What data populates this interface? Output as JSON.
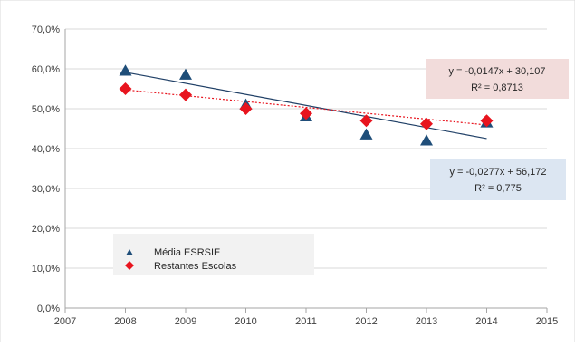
{
  "chart_data": {
    "type": "scatter",
    "title": "",
    "xlabel": "",
    "ylabel": "",
    "xlim": [
      2007,
      2015
    ],
    "ylim": [
      0,
      70
    ],
    "x_ticks": [
      2007,
      2008,
      2009,
      2010,
      2011,
      2012,
      2013,
      2014,
      2015
    ],
    "x_tick_labels": [
      "2007",
      "2008",
      "2009",
      "2010",
      "2011",
      "2012",
      "2013",
      "2014",
      "2015"
    ],
    "y_ticks": [
      0,
      10,
      20,
      30,
      40,
      50,
      60,
      70
    ],
    "y_tick_labels": [
      "0,0%",
      "10,0%",
      "20,0%",
      "30,0%",
      "40,0%",
      "50,0%",
      "60,0%",
      "70,0%"
    ],
    "grid": true,
    "legend_position": "bottom-left",
    "series": [
      {
        "name": "Média ESRSIE",
        "marker": "triangle",
        "color": "#1f4e79",
        "x": [
          2008,
          2009,
          2010,
          2011,
          2012,
          2013,
          2014
        ],
        "y": [
          59.5,
          58.5,
          51.0,
          48.0,
          43.5,
          42.0,
          46.5
        ],
        "trendline": {
          "slope": -2.77,
          "intercept": 5621.3,
          "x_range": [
            2008,
            2014
          ],
          "style": "solid",
          "color": "#1f3f66"
        },
        "equation": "y = -0,0277x + 56,172",
        "r_squared": "R² = 0,775"
      },
      {
        "name": "Restantes Escolas",
        "marker": "diamond",
        "color": "#e8141e",
        "x": [
          2008,
          2009,
          2010,
          2011,
          2012,
          2013,
          2014
        ],
        "y": [
          55.0,
          53.5,
          50.0,
          48.8,
          47.0,
          46.2,
          47.0
        ],
        "trendline": {
          "slope": -1.47,
          "intercept": 3006.5,
          "x_range": [
            2008,
            2014
          ],
          "style": "dotted",
          "color": "#e8141e"
        },
        "equation": "y = -0,0147x + 30,107",
        "r_squared": "R² = 0,8713"
      }
    ]
  },
  "colors": {
    "axis": "#a6a6a6",
    "grid": "#d9d9d9",
    "tick_text": "#404040",
    "legend_bg": "#f2f2f2",
    "equation_box_red": "#f2dcdb",
    "equation_box_blue": "#dce6f2"
  }
}
